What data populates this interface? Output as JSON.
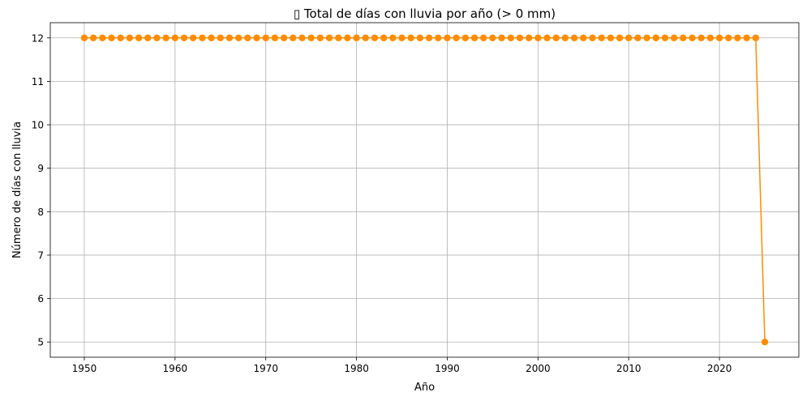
{
  "chart_data": {
    "type": "line",
    "title": "▯ Total de días con lluvia por año (> 0 mm)",
    "xlabel": "Año",
    "ylabel": "Número de días con lluvia",
    "x_ticks": [
      1950,
      1960,
      1970,
      1980,
      1990,
      2000,
      2010,
      2020
    ],
    "y_ticks": [
      5,
      6,
      7,
      8,
      9,
      10,
      11,
      12
    ],
    "xlim": [
      1946.25,
      2028.75
    ],
    "ylim": [
      4.65,
      12.35
    ],
    "grid": true,
    "color": "#ff8c00",
    "marker": "circle",
    "series": [
      {
        "x": [
          1950,
          1951,
          1952,
          1953,
          1954,
          1955,
          1956,
          1957,
          1958,
          1959,
          1960,
          1961,
          1962,
          1963,
          1964,
          1965,
          1966,
          1967,
          1968,
          1969,
          1970,
          1971,
          1972,
          1973,
          1974,
          1975,
          1976,
          1977,
          1978,
          1979,
          1980,
          1981,
          1982,
          1983,
          1984,
          1985,
          1986,
          1987,
          1988,
          1989,
          1990,
          1991,
          1992,
          1993,
          1994,
          1995,
          1996,
          1997,
          1998,
          1999,
          2000,
          2001,
          2002,
          2003,
          2004,
          2005,
          2006,
          2007,
          2008,
          2009,
          2010,
          2011,
          2012,
          2013,
          2014,
          2015,
          2016,
          2017,
          2018,
          2019,
          2020,
          2021,
          2022,
          2023,
          2024,
          2025
        ],
        "y": [
          12,
          12,
          12,
          12,
          12,
          12,
          12,
          12,
          12,
          12,
          12,
          12,
          12,
          12,
          12,
          12,
          12,
          12,
          12,
          12,
          12,
          12,
          12,
          12,
          12,
          12,
          12,
          12,
          12,
          12,
          12,
          12,
          12,
          12,
          12,
          12,
          12,
          12,
          12,
          12,
          12,
          12,
          12,
          12,
          12,
          12,
          12,
          12,
          12,
          12,
          12,
          12,
          12,
          12,
          12,
          12,
          12,
          12,
          12,
          12,
          12,
          12,
          12,
          12,
          12,
          12,
          12,
          12,
          12,
          12,
          12,
          12,
          12,
          12,
          12,
          5
        ]
      }
    ]
  }
}
